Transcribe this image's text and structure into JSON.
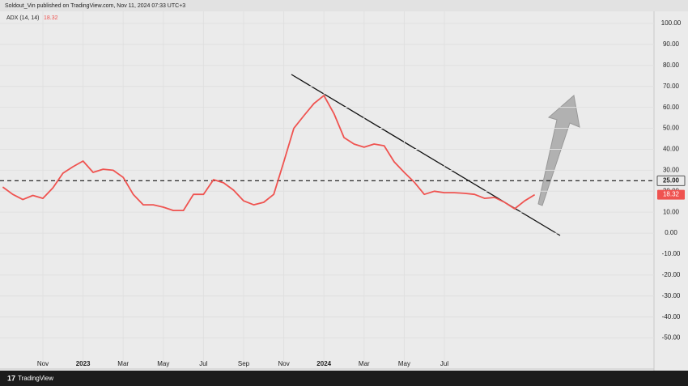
{
  "header": {
    "title": "Soldout_Vin published on TradingView.com, Nov 11, 2024 07:33 UTC+3"
  },
  "footer": {
    "brand": "TradingView"
  },
  "chart_data": {
    "type": "line",
    "categories": [
      null,
      null,
      null,
      null,
      "Nov",
      null,
      null,
      null,
      "2023",
      null,
      null,
      null,
      "Mar",
      null,
      null,
      null,
      "May",
      null,
      null,
      null,
      "Jul",
      null,
      null,
      null,
      "Sep",
      null,
      null,
      null,
      "Nov",
      null,
      null,
      null,
      "2024",
      null,
      null,
      null,
      "Mar",
      null,
      null,
      null,
      "May",
      null,
      null,
      null,
      "Jul",
      null,
      null,
      null,
      null,
      null,
      null,
      null,
      null,
      null
    ],
    "series": [
      {
        "name": "ADX (14, 14)",
        "color": "#ef5350",
        "values": [
          22,
          18.5,
          16,
          18,
          16.6,
          21.6,
          28.6,
          31.7,
          34.4,
          29,
          30.5,
          30,
          26.6,
          18.5,
          13.5,
          13.5,
          12.4,
          10.8,
          10.8,
          18.5,
          18.5,
          25.5,
          24,
          20.5,
          15.4,
          13.5,
          14.7,
          18.5,
          34,
          50,
          56,
          61.8,
          65.6,
          57,
          45.6,
          42.5,
          41,
          42.5,
          41.7,
          34,
          29,
          24.3,
          18.5,
          20,
          19.3,
          19.3,
          19,
          18.5,
          16.6,
          17,
          14.7,
          11.6,
          15.4,
          18.32
        ]
      }
    ],
    "ylim": [
      -62.5,
      105.8
    ],
    "yticks": [
      {
        "value": 100,
        "label": "100.00"
      },
      {
        "value": 90,
        "label": "90.00"
      },
      {
        "value": 80,
        "label": "80.00"
      },
      {
        "value": 70,
        "label": "70.00"
      },
      {
        "value": 60,
        "label": "60.00"
      },
      {
        "value": 50,
        "label": "50.00"
      },
      {
        "value": 40,
        "label": "40.00"
      },
      {
        "value": 30,
        "label": "30.00"
      },
      {
        "value": 20,
        "label": "20.00"
      },
      {
        "value": 10,
        "label": "10.00"
      },
      {
        "value": 0,
        "label": "0.00"
      },
      {
        "value": -10,
        "label": "-10.00"
      },
      {
        "value": -20,
        "label": "-20.00"
      },
      {
        "value": -30,
        "label": "-30.00"
      },
      {
        "value": -40,
        "label": "-40.00"
      },
      {
        "value": -50,
        "label": "-50.00"
      }
    ],
    "hline": {
      "value": 25,
      "label": "25.00"
    },
    "grid": true
  }
}
